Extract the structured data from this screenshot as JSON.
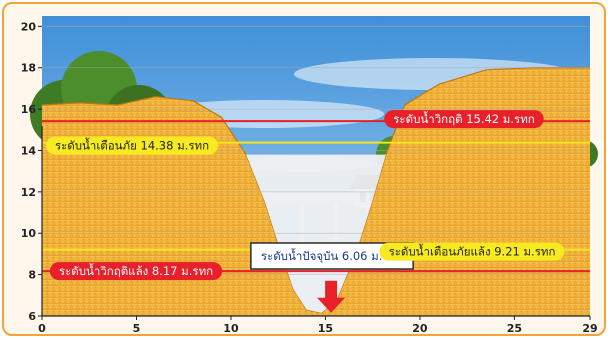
{
  "chart_data": {
    "type": "cross-section",
    "x_ticks": [
      0,
      5,
      10,
      15,
      20,
      25,
      29
    ],
    "y_ticks": [
      6,
      8,
      10,
      12,
      14,
      16,
      18,
      20
    ],
    "xlim": [
      0,
      29
    ],
    "ylim": [
      6,
      20.5
    ],
    "levels": [
      {
        "name": "critical_high",
        "label": "ระดับน้ำวิกฤติ 15.42 ม.รทก",
        "value": 15.42,
        "line_color": "#e8202a",
        "badge_color": "#e8202a",
        "text_color": "#ffffff",
        "side": "right"
      },
      {
        "name": "warning_high",
        "label": "ระดับน้ำเตือนภัย 14.38 ม.รทก",
        "value": 14.38,
        "line_color": "#f3e61a",
        "badge_color": "#f7ea1e",
        "text_color": "#222222",
        "side": "left"
      },
      {
        "name": "current",
        "label": "ระดับน้ำปัจจุบัน 6.06 ม.รทก",
        "value": 6.06,
        "line_color": "#e8202a",
        "badge_color": "#ffffff",
        "text_color": "#1a3a8a",
        "side": "center"
      },
      {
        "name": "warning_low",
        "label": "ระดับน้ำเตือนภัยแล้ง 9.21 ม.รทก",
        "value": 9.21,
        "line_color": "#f3e61a",
        "badge_color": "#f7ea1e",
        "text_color": "#222222",
        "side": "right"
      },
      {
        "name": "critical_low",
        "label": "ระดับน้ำวิกฤติแล้ง 8.17 ม.รทก",
        "value": 8.17,
        "line_color": "#e8202a",
        "badge_color": "#e8202a",
        "text_color": "#ffffff",
        "side": "left"
      }
    ],
    "terrain": [
      [
        0,
        16.2
      ],
      [
        2,
        16.3
      ],
      [
        4,
        16.2
      ],
      [
        6,
        16.6
      ],
      [
        8,
        16.4
      ],
      [
        9.5,
        15.6
      ],
      [
        10.8,
        13.8
      ],
      [
        11.8,
        11.5
      ],
      [
        12.6,
        9.2
      ],
      [
        13.3,
        7.3
      ],
      [
        14,
        6.3
      ],
      [
        14.8,
        6.15
      ],
      [
        15.6,
        6.8
      ],
      [
        16.6,
        9.0
      ],
      [
        17.4,
        11.3
      ],
      [
        18.2,
        13.8
      ],
      [
        19.2,
        16.2
      ],
      [
        21,
        17.2
      ],
      [
        23.5,
        17.9
      ],
      [
        26,
        18.0
      ],
      [
        29,
        18.0
      ]
    ],
    "colors": {
      "soil": "#f2b43a",
      "soil_dark": "#d7891d",
      "water": "#eef0f2",
      "sky_top": "#3f8fd8",
      "sky_bottom": "#a8d4f4",
      "grid": "#a9a9a9",
      "arrow": "#e8202a"
    }
  }
}
